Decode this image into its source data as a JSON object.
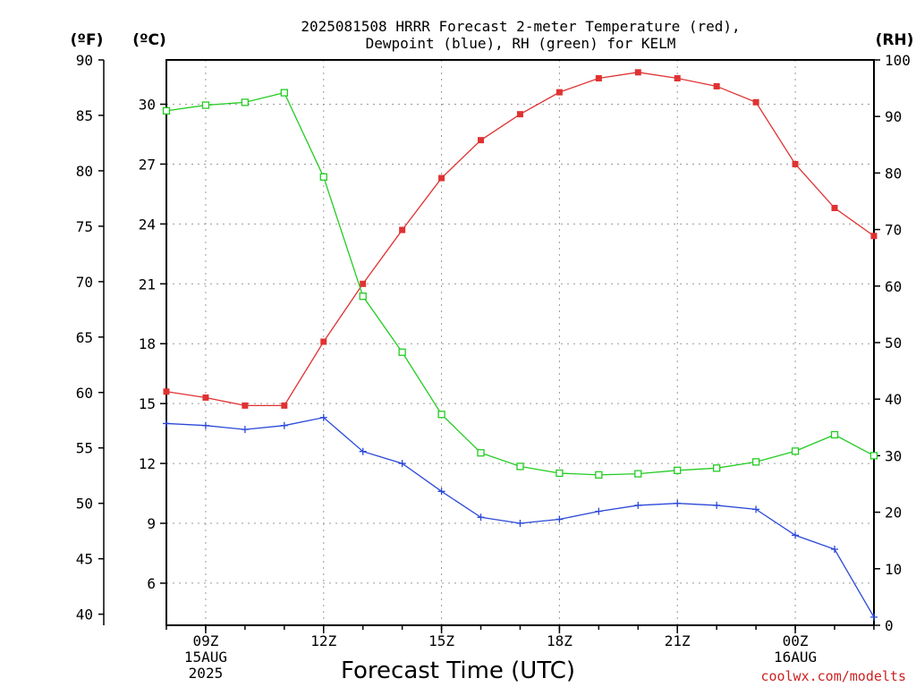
{
  "title_line1": "2025081508 HRRR Forecast 2-meter Temperature (red),",
  "title_line2": "Dewpoint (blue), RH (green) for KELM",
  "unit_f": "(ºF)",
  "unit_c": "(ºC)",
  "unit_rh": "(RH)",
  "xlabel": "Forecast Time (UTC)",
  "credit": "coolwx.com/modelts",
  "colors": {
    "temperature": "#e03232",
    "dewpoint": "#2b48d8",
    "rh": "#22cc22",
    "grid": "#999999"
  },
  "chart_data": {
    "type": "line",
    "title": "2025081508 HRRR Forecast 2-meter Temperature (red), Dewpoint (blue), RH (green) for KELM",
    "xlabel": "Forecast Time (UTC)",
    "x": [
      "08Z",
      "09Z",
      "10Z",
      "11Z",
      "12Z",
      "13Z",
      "14Z",
      "15Z",
      "16Z",
      "17Z",
      "18Z",
      "19Z",
      "20Z",
      "21Z",
      "22Z",
      "23Z",
      "00Z",
      "01Z",
      "02Z"
    ],
    "x_tick_labels": [
      {
        "hour": "09Z",
        "lines": [
          "09Z",
          "15AUG",
          "2025"
        ]
      },
      {
        "hour": "12Z",
        "lines": [
          "12Z"
        ]
      },
      {
        "hour": "15Z",
        "lines": [
          "15Z"
        ]
      },
      {
        "hour": "18Z",
        "lines": [
          "18Z"
        ]
      },
      {
        "hour": "21Z",
        "lines": [
          "21Z"
        ]
      },
      {
        "hour": "00Z",
        "lines": [
          "00Z",
          "16AUG"
        ]
      }
    ],
    "y_left_f": {
      "label": "(ºF)",
      "range": [
        39,
        90
      ],
      "ticks": [
        "40",
        "45",
        "50",
        "55",
        "60",
        "65",
        "70",
        "75",
        "80",
        "85",
        "90"
      ]
    },
    "y_left_c": {
      "label": "(ºC)",
      "range": [
        3.89,
        32.22
      ],
      "ticks": [
        "6",
        "9",
        "12",
        "15",
        "18",
        "21",
        "24",
        "27",
        "30"
      ]
    },
    "y_right_rh": {
      "label": "(RH)",
      "range": [
        0,
        100
      ],
      "ticks": [
        "0",
        "10",
        "20",
        "30",
        "40",
        "50",
        "60",
        "70",
        "80",
        "90",
        "100"
      ]
    },
    "grid": true,
    "series": [
      {
        "name": "Temperature",
        "axis": "c",
        "marker": "filled-square",
        "values": [
          15.6,
          15.3,
          14.9,
          14.9,
          18.1,
          21.0,
          23.7,
          26.3,
          28.2,
          29.5,
          30.6,
          31.3,
          31.6,
          31.3,
          30.9,
          30.1,
          27.0,
          24.8,
          23.4
        ]
      },
      {
        "name": "Dewpoint",
        "axis": "c",
        "marker": "plus",
        "values": [
          14.0,
          13.9,
          13.7,
          13.9,
          14.3,
          12.6,
          12.0,
          10.6,
          9.3,
          9.0,
          9.2,
          9.6,
          9.9,
          10.0,
          9.9,
          9.7,
          8.4,
          7.7,
          4.3
        ]
      },
      {
        "name": "RH",
        "axis": "rh",
        "marker": "open-square",
        "values": [
          91,
          92,
          92.5,
          94.2,
          79.3,
          58.2,
          48.3,
          37.3,
          30.5,
          28.1,
          26.9,
          26.6,
          26.8,
          27.4,
          27.8,
          28.9,
          30.8,
          33.7,
          30
        ]
      }
    ]
  }
}
